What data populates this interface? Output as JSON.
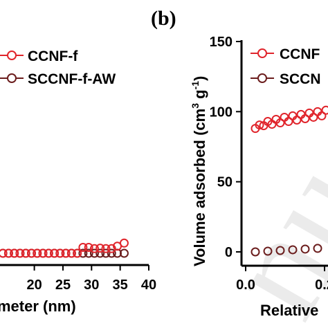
{
  "chart_data": [
    {
      "type": "scatter",
      "xlabel": "meter (nm)",
      "ylabel": "",
      "xlim": [
        14,
        40
      ],
      "xticks": [
        "20",
        "25",
        "30",
        "35",
        "40"
      ],
      "xtick_values": [
        20,
        25,
        30,
        35,
        40
      ],
      "ylim": [
        -3,
        54
      ],
      "grid": false,
      "legend_position": "top-left",
      "series": [
        {
          "name": "CCNF-f",
          "color": "#e0242b",
          "x": [
            14.5,
            15.5,
            16.5,
            17.5,
            18.5,
            19.5,
            20.5,
            21.5,
            22.5,
            23.5,
            24.5,
            25.5,
            26.5,
            27.5,
            28.5,
            29.5,
            30.5,
            31.5,
            32.5,
            33.5,
            34.5,
            35.7
          ],
          "y": [
            0.0,
            0.0,
            0.0,
            0.0,
            0.0,
            0.0,
            0.0,
            0.0,
            0.0,
            0.0,
            0.0,
            0.0,
            0.0,
            0.0,
            1.5,
            1.5,
            1.2,
            1.3,
            1.2,
            1.2,
            1.8,
            2.6
          ]
        },
        {
          "name": "SCCNF-f-AW",
          "color": "#6b1d1d",
          "x": [
            14.5,
            15.5,
            16.5,
            17.5,
            18.5,
            19.5,
            20.5,
            21.5,
            22.5,
            23.5,
            24.5,
            25.5,
            26.5,
            27.5,
            28.5,
            29.5,
            30.5,
            31.5,
            32.5,
            33.5,
            34.5,
            35.7
          ],
          "y": [
            0,
            0,
            0,
            0,
            0,
            0,
            0,
            0,
            0,
            0,
            0,
            0,
            0,
            0,
            0,
            0,
            0,
            0,
            0,
            0,
            0,
            0
          ]
        }
      ]
    },
    {
      "type": "scatter",
      "panel_label": "(b)",
      "xlabel": "Relative",
      "ylabel": "Volume adsorbed (cm",
      "ylabel_sup1": "3",
      "ylabel_mid": " g",
      "ylabel_sup2": "-1",
      "ylabel_end": ")",
      "xlim": [
        0,
        0.42
      ],
      "xticks": [
        "0.0",
        "0.2"
      ],
      "xtick_values": [
        0.0,
        0.2
      ],
      "ylim": [
        -5,
        150
      ],
      "yticks": [
        "0",
        "50",
        "100",
        "150"
      ],
      "ytick_values": [
        0,
        50,
        100,
        150
      ],
      "grid": false,
      "legend_position": "top-left",
      "series": [
        {
          "name": "CCNF-f",
          "legend_label": "CCNF",
          "color": "#e0242b",
          "x": [
            0.01,
            0.03,
            0.05,
            0.07,
            0.09,
            0.11,
            0.13,
            0.15,
            0.17,
            0.19,
            0.21,
            0.23,
            0.25,
            0.27,
            0.29,
            0.31,
            0.33,
            0.35,
            0.37,
            0.39,
            0.41,
            0.02,
            0.04,
            0.06,
            0.08,
            0.1,
            0.12,
            0.14,
            0.16,
            0.18,
            0.2,
            0.22,
            0.24,
            0.26,
            0.28,
            0.3,
            0.32,
            0.34,
            0.36,
            0.38,
            0.4
          ],
          "y": [
            88,
            90,
            91,
            92,
            93,
            94,
            95,
            96,
            97,
            98,
            99,
            99.5,
            100.5,
            101,
            102,
            103,
            104,
            104.5,
            105,
            106,
            107,
            90.5,
            93,
            94.5,
            96,
            97,
            98,
            99,
            100,
            101,
            102,
            102.5,
            103.5,
            104,
            105,
            105.5,
            106,
            107,
            107.5,
            108,
            109
          ]
        },
        {
          "name": "SCCNF-f-AW",
          "legend_label": "SCCN",
          "color": "#6b1d1d",
          "x": [
            0.01,
            0.04,
            0.07,
            0.1,
            0.13,
            0.16,
            0.19,
            0.22,
            0.25,
            0.28,
            0.31,
            0.34,
            0.37,
            0.4
          ],
          "y": [
            0,
            0.5,
            1,
            1.5,
            2,
            2.5,
            3,
            3.2,
            3.4,
            3.6,
            3.8,
            4.0,
            4.2,
            4.4
          ]
        }
      ],
      "legend_entries": [
        "CCNF",
        "SCCN"
      ]
    }
  ],
  "legend_a": [
    "CCNF-f",
    "SCCNF-f-AW"
  ]
}
